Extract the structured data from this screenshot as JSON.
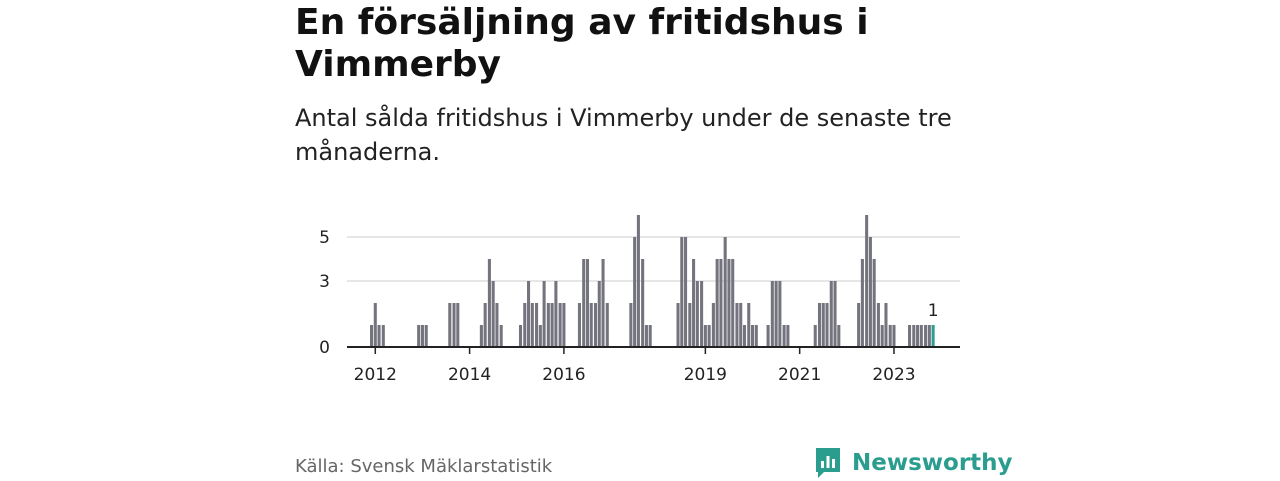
{
  "header": {
    "title": "En försäljning av fritidshus i Vimmerby",
    "subtitle": "Antal sålda fritidshus i Vimmerby under de senaste tre månaderna."
  },
  "footer": {
    "source": "Källa: Svensk Mäklarstatistik",
    "brand": "Newsworthy"
  },
  "colors": {
    "bar": "#74747e",
    "highlight": "#2a9d8f",
    "grid": "#dddddd",
    "axis": "#222222",
    "brand": "#2a9d8f"
  },
  "icons": {
    "brand_logo": "newsworthy-logo-icon"
  },
  "chart_data": {
    "type": "bar",
    "title": "En försäljning av fritidshus i Vimmerby",
    "subtitle": "Antal sålda fritidshus i Vimmerby under de senaste tre månaderna.",
    "x_tick_labels": [
      "2012",
      "2014",
      "2016",
      "2019",
      "2021",
      "2023"
    ],
    "x_tick_positions": [
      2012,
      2014,
      2016,
      2019,
      2021,
      2023
    ],
    "xlim": [
      2011.4,
      2024.4
    ],
    "y_ticks": [
      0,
      3,
      5
    ],
    "ylim": [
      0,
      6
    ],
    "grid": true,
    "highlight": {
      "x": 2023.83,
      "value": 1,
      "label": "1"
    },
    "x": [
      2011.92,
      2012.0,
      2012.08,
      2012.17,
      2012.92,
      2013.0,
      2013.08,
      2013.58,
      2013.67,
      2013.75,
      2014.25,
      2014.33,
      2014.42,
      2014.5,
      2014.58,
      2014.67,
      2015.08,
      2015.17,
      2015.25,
      2015.33,
      2015.42,
      2015.5,
      2015.58,
      2015.67,
      2015.75,
      2015.83,
      2015.92,
      2016.0,
      2016.33,
      2016.42,
      2016.5,
      2016.58,
      2016.67,
      2016.75,
      2016.83,
      2016.92,
      2017.42,
      2017.5,
      2017.58,
      2017.67,
      2017.75,
      2017.83,
      2018.42,
      2018.5,
      2018.58,
      2018.67,
      2018.75,
      2018.83,
      2018.92,
      2019.0,
      2019.08,
      2019.17,
      2019.25,
      2019.33,
      2019.42,
      2019.5,
      2019.58,
      2019.67,
      2019.75,
      2019.83,
      2019.92,
      2020.0,
      2020.08,
      2020.33,
      2020.42,
      2020.5,
      2020.58,
      2020.67,
      2020.75,
      2021.33,
      2021.42,
      2021.5,
      2021.58,
      2021.67,
      2021.75,
      2021.83,
      2022.25,
      2022.33,
      2022.42,
      2022.5,
      2022.58,
      2022.67,
      2022.75,
      2022.83,
      2022.92,
      2023.0,
      2023.33,
      2023.42,
      2023.5,
      2023.58,
      2023.67,
      2023.75,
      2023.83
    ],
    "values": [
      1,
      2,
      1,
      1,
      1,
      1,
      1,
      2,
      2,
      2,
      1,
      2,
      4,
      3,
      2,
      1,
      1,
      2,
      3,
      2,
      2,
      1,
      3,
      2,
      2,
      3,
      2,
      2,
      2,
      4,
      4,
      2,
      2,
      3,
      4,
      2,
      2,
      5,
      6,
      4,
      1,
      1,
      2,
      5,
      5,
      2,
      4,
      3,
      3,
      1,
      1,
      2,
      4,
      4,
      5,
      4,
      4,
      2,
      2,
      1,
      2,
      1,
      1,
      1,
      3,
      3,
      3,
      1,
      1,
      1,
      2,
      2,
      2,
      3,
      3,
      1,
      2,
      4,
      6,
      5,
      4,
      2,
      1,
      2,
      1,
      1,
      1,
      1,
      1,
      1,
      1,
      1,
      1
    ]
  }
}
